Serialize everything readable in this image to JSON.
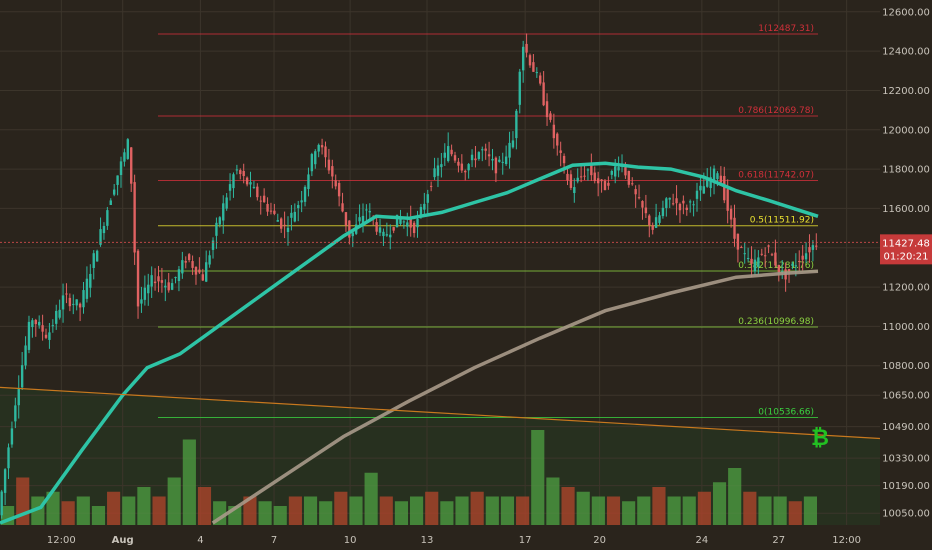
{
  "chart_data": {
    "type": "candlestick",
    "instrument_icon": "bitcoin-icon",
    "price_axis": {
      "range": [
        9990,
        12660
      ],
      "ticks": [
        "12600.00",
        "12400.00",
        "12200.00",
        "12000.00",
        "11800.00",
        "11600.00",
        "11400.00",
        "11200.00",
        "11000.00",
        "10800.00",
        "10650.00",
        "10490.00",
        "10330.00",
        "10190.00",
        "10050.00"
      ]
    },
    "time_axis": {
      "ticks": [
        "12:00",
        "Aug",
        "4",
        "7",
        "10",
        "13",
        "17",
        "20",
        "24",
        "27",
        "12:00"
      ]
    },
    "current_price": {
      "label": "11427.48",
      "countdown": "01:20:21",
      "value": 11427.48
    },
    "fib_levels": [
      {
        "label": "1(12487.31)",
        "value": 12487.31,
        "color": "#d0303a"
      },
      {
        "label": "0.786(12069.78)",
        "value": 12069.78,
        "color": "#d0303a"
      },
      {
        "label": "0.618(11742.07)",
        "value": 11742.07,
        "color": "#d0303a"
      },
      {
        "label": "0.5(11511.92)",
        "value": 11511.92,
        "color": "#e8e030"
      },
      {
        "label": "0.382(11281.76)",
        "value": 11281.76,
        "color": "#8ad040"
      },
      {
        "label": "0.236(10996.98)",
        "value": 10996.98,
        "color": "#8ad040"
      },
      {
        "label": "0(10536.66)",
        "value": 10536.66,
        "color": "#3ad040"
      }
    ],
    "ma_fast": {
      "color": "#2ec4a6",
      "points": [
        [
          0,
          10000
        ],
        [
          0.05,
          10080
        ],
        [
          0.1,
          10370
        ],
        [
          0.15,
          10650
        ],
        [
          0.18,
          10790
        ],
        [
          0.22,
          10860
        ],
        [
          0.26,
          10980
        ],
        [
          0.3,
          11100
        ],
        [
          0.34,
          11220
        ],
        [
          0.38,
          11340
        ],
        [
          0.42,
          11460
        ],
        [
          0.46,
          11560
        ],
        [
          0.5,
          11550
        ],
        [
          0.54,
          11580
        ],
        [
          0.58,
          11630
        ],
        [
          0.62,
          11680
        ],
        [
          0.66,
          11750
        ],
        [
          0.7,
          11820
        ],
        [
          0.74,
          11830
        ],
        [
          0.78,
          11810
        ],
        [
          0.82,
          11800
        ],
        [
          0.86,
          11760
        ],
        [
          0.9,
          11690
        ],
        [
          0.94,
          11640
        ],
        [
          1.0,
          11560
        ]
      ]
    },
    "ma_slow": {
      "color": "#a89a8a",
      "points": [
        [
          0.26,
          10000
        ],
        [
          0.34,
          10220
        ],
        [
          0.42,
          10440
        ],
        [
          0.5,
          10620
        ],
        [
          0.58,
          10790
        ],
        [
          0.66,
          10940
        ],
        [
          0.74,
          11080
        ],
        [
          0.82,
          11170
        ],
        [
          0.9,
          11250
        ],
        [
          0.96,
          11270
        ],
        [
          1.0,
          11280
        ]
      ]
    },
    "trendline": {
      "color": "#c8781e",
      "from": 10690,
      "to": 10430
    },
    "price_path": [
      {
        "t": 0.0,
        "v": 10040
      },
      {
        "t": 0.02,
        "v": 10600
      },
      {
        "t": 0.04,
        "v": 11050
      },
      {
        "t": 0.06,
        "v": 10950
      },
      {
        "t": 0.08,
        "v": 11150
      },
      {
        "t": 0.1,
        "v": 11100
      },
      {
        "t": 0.12,
        "v": 11400
      },
      {
        "t": 0.14,
        "v": 11700
      },
      {
        "t": 0.16,
        "v": 11950
      },
      {
        "t": 0.17,
        "v": 11100
      },
      {
        "t": 0.19,
        "v": 11250
      },
      {
        "t": 0.21,
        "v": 11200
      },
      {
        "t": 0.23,
        "v": 11350
      },
      {
        "t": 0.25,
        "v": 11250
      },
      {
        "t": 0.27,
        "v": 11550
      },
      {
        "t": 0.29,
        "v": 11800
      },
      {
        "t": 0.31,
        "v": 11700
      },
      {
        "t": 0.33,
        "v": 11600
      },
      {
        "t": 0.35,
        "v": 11500
      },
      {
        "t": 0.37,
        "v": 11650
      },
      {
        "t": 0.39,
        "v": 11950
      },
      {
        "t": 0.41,
        "v": 11750
      },
      {
        "t": 0.43,
        "v": 11450
      },
      {
        "t": 0.45,
        "v": 11600
      },
      {
        "t": 0.47,
        "v": 11450
      },
      {
        "t": 0.49,
        "v": 11550
      },
      {
        "t": 0.51,
        "v": 11500
      },
      {
        "t": 0.53,
        "v": 11750
      },
      {
        "t": 0.55,
        "v": 11900
      },
      {
        "t": 0.57,
        "v": 11800
      },
      {
        "t": 0.59,
        "v": 11900
      },
      {
        "t": 0.61,
        "v": 11800
      },
      {
        "t": 0.63,
        "v": 11950
      },
      {
        "t": 0.64,
        "v": 12450
      },
      {
        "t": 0.66,
        "v": 12250
      },
      {
        "t": 0.68,
        "v": 11950
      },
      {
        "t": 0.7,
        "v": 11700
      },
      {
        "t": 0.72,
        "v": 11800
      },
      {
        "t": 0.74,
        "v": 11700
      },
      {
        "t": 0.76,
        "v": 11850
      },
      {
        "t": 0.78,
        "v": 11650
      },
      {
        "t": 0.8,
        "v": 11500
      },
      {
        "t": 0.82,
        "v": 11650
      },
      {
        "t": 0.84,
        "v": 11600
      },
      {
        "t": 0.86,
        "v": 11700
      },
      {
        "t": 0.88,
        "v": 11800
      },
      {
        "t": 0.9,
        "v": 11450
      },
      {
        "t": 0.92,
        "v": 11300
      },
      {
        "t": 0.94,
        "v": 11400
      },
      {
        "t": 0.96,
        "v": 11250
      },
      {
        "t": 0.98,
        "v": 11350
      },
      {
        "t": 1.0,
        "v": 11427
      }
    ],
    "volume": [
      0.2,
      0.5,
      0.3,
      0.35,
      0.25,
      0.3,
      0.2,
      0.35,
      0.3,
      0.4,
      0.3,
      0.5,
      0.9,
      0.4,
      0.25,
      0.2,
      0.3,
      0.25,
      0.2,
      0.3,
      0.3,
      0.25,
      0.35,
      0.3,
      0.55,
      0.3,
      0.25,
      0.3,
      0.35,
      0.25,
      0.3,
      0.35,
      0.3,
      0.3,
      0.3,
      1.0,
      0.5,
      0.4,
      0.35,
      0.3,
      0.3,
      0.25,
      0.3,
      0.4,
      0.3,
      0.3,
      0.35,
      0.45,
      0.6,
      0.35,
      0.3,
      0.3,
      0.25,
      0.3
    ],
    "grid": true
  }
}
